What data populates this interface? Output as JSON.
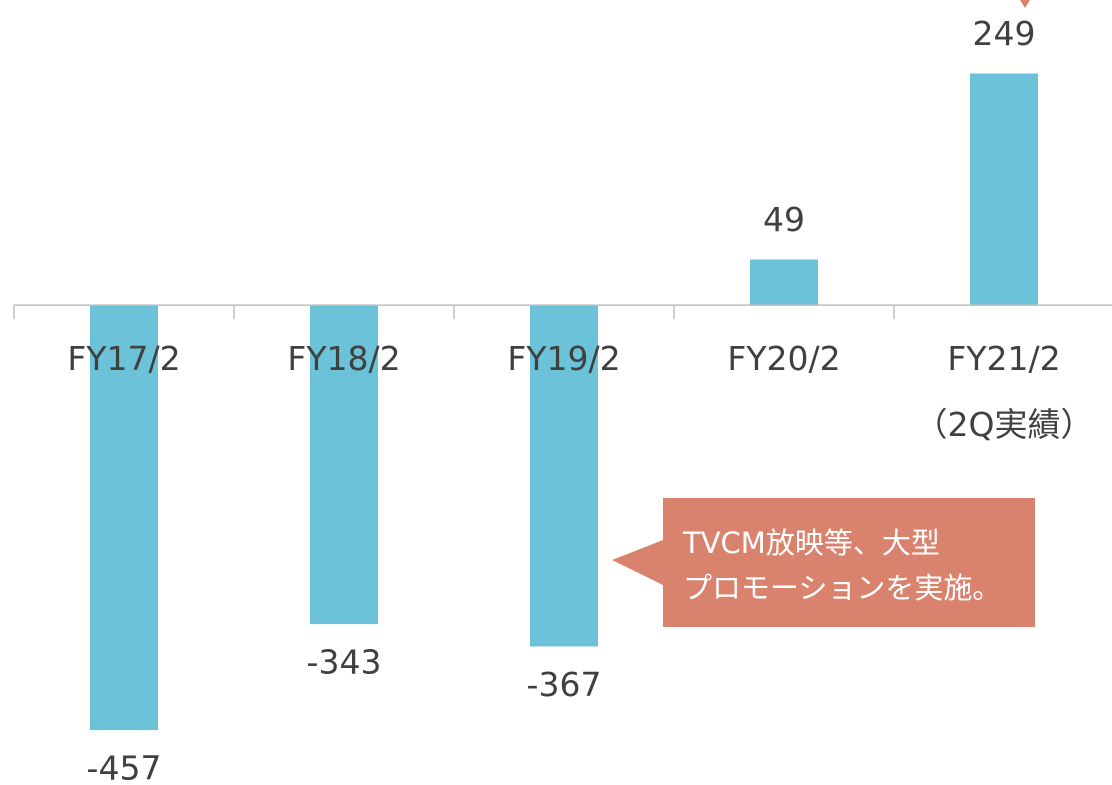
{
  "chart_data": {
    "type": "bar",
    "categories": [
      "FY17/2",
      "FY18/2",
      "FY19/2",
      "FY20/2",
      "FY21/2\n（2Q実績）"
    ],
    "values": [
      -457,
      -343,
      -367,
      49,
      249
    ],
    "color": "#6cc3d9",
    "ylim": [
      -516,
      328
    ],
    "annotation": "TVCM放映等、大型\nプロモーションを実施。"
  }
}
